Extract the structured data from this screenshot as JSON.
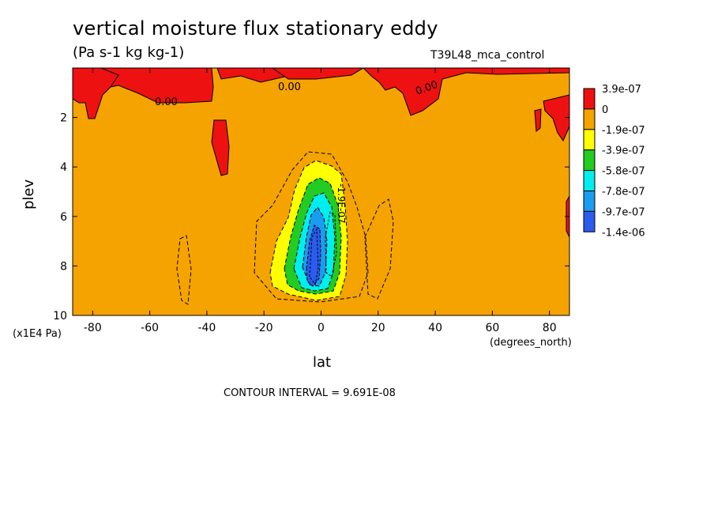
{
  "chart_data": {
    "type": "heatmap",
    "title": "vertical moisture flux stationary eddy",
    "subtitle": "(Pa s-1 kg kg-1)",
    "run_label": "T39L48_mca_control",
    "xlabel": "lat",
    "xunits": "(degrees_north)",
    "ylabel": "plev",
    "yunits": "(x1E4 Pa)",
    "xlim": [
      -87,
      87
    ],
    "ylim": [
      10,
      0
    ],
    "xticks": [
      -80,
      -60,
      -40,
      -20,
      0,
      20,
      40,
      60,
      80
    ],
    "xtick_labels": [
      "-80",
      "-60",
      "-40",
      "-20",
      "0",
      "20",
      "40",
      "60",
      "80"
    ],
    "yticks": [
      2,
      4,
      6,
      8,
      10
    ],
    "ytick_labels": [
      "2",
      "4",
      "6",
      "8",
      "10"
    ],
    "colorbar": {
      "labels": [
        "3.9e-07",
        "0",
        "-1.9e-07",
        "-3.9e-07",
        "-5.8e-07",
        "-7.8e-07",
        "-9.7e-07",
        "-1.4e-06"
      ],
      "colors": [
        "#ee1111",
        "#f5a300",
        "#ffff00",
        "#22cc22",
        "#00eeee",
        "#1a9cf0",
        "#2a5cf0"
      ]
    },
    "contour_labels": [
      "0.00",
      "0.00",
      "0.00",
      "-1.9E-07"
    ],
    "contour_interval_text": "CONTOUR INTERVAL = 9.691E-08",
    "field_summary": {
      "background_value_range": [
        -1.9e-07,
        0
      ],
      "positive_regions": [
        {
          "lat_range": [
            -87,
            -68
          ],
          "plev_range": [
            0.2,
            2.3
          ]
        },
        {
          "lat_range": [
            -64,
            -38
          ],
          "plev_range": [
            0.2,
            1.4
          ]
        },
        {
          "lat_range": [
            -38,
            -33
          ],
          "plev_range": [
            2.1,
            3.9
          ]
        },
        {
          "lat_range": [
            -19,
            14
          ],
          "plev_range": [
            0.2,
            1.0
          ]
        },
        {
          "lat_range": [
            28,
            48
          ],
          "plev_range": [
            0.2,
            2.1
          ]
        },
        {
          "lat_range": [
            65,
            87
          ],
          "plev_range": [
            0.2,
            2.1
          ]
        }
      ],
      "negative_core": {
        "lat_range": [
          -17,
          10
        ],
        "plev_range": [
          3.7,
          9.2
        ],
        "min_value": -1.4e-06,
        "min_at_lat": -4,
        "min_at_plev": 8
      }
    }
  }
}
